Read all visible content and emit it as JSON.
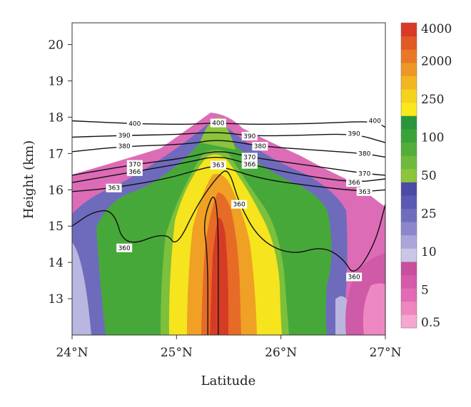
{
  "chart_data": {
    "type": "heatmap",
    "title": "",
    "xlabel": "Latitude",
    "ylabel": "Height (km)",
    "x_ticks": [
      "24°N",
      "25°N",
      "26°N",
      "27°N"
    ],
    "x_tick_values": [
      24,
      25,
      26,
      27
    ],
    "xlim": [
      24,
      27
    ],
    "y_ticks": [
      "13",
      "14",
      "15",
      "16",
      "17",
      "18",
      "19",
      "20"
    ],
    "ylim": [
      12.0,
      20.6
    ],
    "colorbar": {
      "labels": [
        "0.5",
        "5",
        "10",
        "25",
        "50",
        "100",
        "250",
        "2000",
        "4000"
      ],
      "colors": [
        "#f6a6cf",
        "#ee86c0",
        "#e36ab4",
        "#d659aa",
        "#c74f9e",
        "#c9c6e6",
        "#aaa6da",
        "#8c87cc",
        "#716dbe",
        "#5b59b2",
        "#4b4aa6",
        "#8cc43c",
        "#6fba3c",
        "#52ad3a",
        "#3ba23a",
        "#2a963c",
        "#f8e81c",
        "#f6d21e",
        "#f3b623",
        "#ee9726",
        "#e87826",
        "#e05a25",
        "#d83a25"
      ]
    },
    "contours": [
      {
        "label": "400",
        "points": [
          [
            24.0,
            17.9
          ],
          [
            24.6,
            17.82
          ],
          [
            25.1,
            17.8
          ],
          [
            25.3,
            17.83
          ],
          [
            25.4,
            17.84
          ],
          [
            25.7,
            17.8
          ],
          [
            26.3,
            17.82
          ],
          [
            26.9,
            17.9
          ],
          [
            27.0,
            17.72
          ]
        ]
      },
      {
        "label": "390",
        "points": [
          [
            24.0,
            17.45
          ],
          [
            24.5,
            17.5
          ],
          [
            25.0,
            17.52
          ],
          [
            25.4,
            17.6
          ],
          [
            25.7,
            17.48
          ],
          [
            26.2,
            17.5
          ],
          [
            26.7,
            17.55
          ],
          [
            27.0,
            17.3
          ]
        ]
      },
      {
        "label": "380",
        "points": [
          [
            24.0,
            17.05
          ],
          [
            24.5,
            17.2
          ],
          [
            25.1,
            17.25
          ],
          [
            25.4,
            17.4
          ],
          [
            25.8,
            17.2
          ],
          [
            26.3,
            17.1
          ],
          [
            26.8,
            17.0
          ],
          [
            27.0,
            16.9
          ]
        ]
      },
      {
        "label": "370",
        "points": [
          [
            24.0,
            16.4
          ],
          [
            24.6,
            16.7
          ],
          [
            25.1,
            16.88
          ],
          [
            25.4,
            17.1
          ],
          [
            25.7,
            16.9
          ],
          [
            26.2,
            16.7
          ],
          [
            26.8,
            16.45
          ],
          [
            27.0,
            16.4
          ]
        ]
      },
      {
        "label": "366",
        "points": [
          [
            24.0,
            16.2
          ],
          [
            24.6,
            16.5
          ],
          [
            25.1,
            16.75
          ],
          [
            25.4,
            16.95
          ],
          [
            25.7,
            16.7
          ],
          [
            26.2,
            16.4
          ],
          [
            26.7,
            16.2
          ],
          [
            27.0,
            16.3
          ]
        ]
      },
      {
        "label": "363",
        "points": [
          [
            24.0,
            15.95
          ],
          [
            24.4,
            16.05
          ],
          [
            24.9,
            16.3
          ],
          [
            25.2,
            16.55
          ],
          [
            25.4,
            16.68
          ],
          [
            25.8,
            16.3
          ],
          [
            26.3,
            16.1
          ],
          [
            26.8,
            15.95
          ],
          [
            27.0,
            16.0
          ]
        ]
      },
      {
        "label": "360",
        "points": [
          [
            24.0,
            15.0
          ],
          [
            24.2,
            15.4
          ],
          [
            24.4,
            15.45
          ],
          [
            24.5,
            14.4
          ],
          [
            24.9,
            14.85
          ],
          [
            25.0,
            14.4
          ],
          [
            25.2,
            15.6
          ],
          [
            25.4,
            16.4
          ],
          [
            25.5,
            16.6
          ],
          [
            25.6,
            15.6
          ],
          [
            25.8,
            14.6
          ],
          [
            26.1,
            14.2
          ],
          [
            26.4,
            14.45
          ],
          [
            26.6,
            14.1
          ],
          [
            26.7,
            13.6
          ],
          [
            26.9,
            14.5
          ],
          [
            27.0,
            15.6
          ]
        ]
      },
      {
        "label": "",
        "points": [
          [
            25.3,
            12.0
          ],
          [
            25.3,
            14.2
          ],
          [
            25.25,
            15.2
          ],
          [
            25.4,
            16.2
          ],
          [
            25.4,
            12.0
          ]
        ]
      }
    ]
  }
}
